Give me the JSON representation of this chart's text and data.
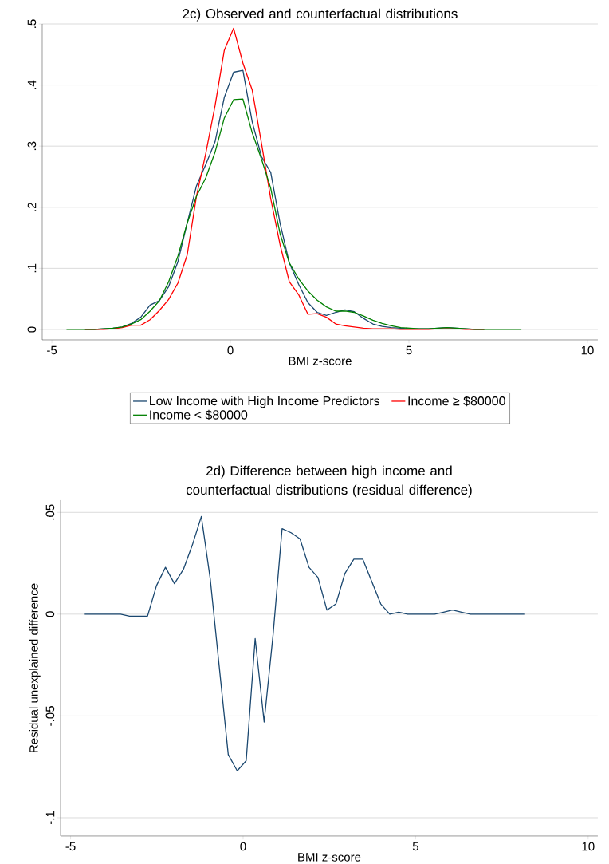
{
  "chart_data": [
    {
      "type": "line",
      "title": "2c) Observed and counterfactual distributions",
      "xlabel": "BMI z-score",
      "x": [
        -4.59,
        -4.33,
        -4.07,
        -3.81,
        -3.55,
        -3.29,
        -3.03,
        -2.77,
        -2.51,
        -2.25,
        -1.99,
        -1.73,
        -1.47,
        -1.21,
        -0.95,
        -0.69,
        -0.43,
        -0.17,
        0.09,
        0.35,
        0.61,
        0.87,
        1.13,
        1.39,
        1.65,
        1.91,
        2.17,
        2.43,
        2.69,
        2.95,
        3.21,
        3.47,
        3.73,
        3.99,
        4.25,
        4.51,
        4.77,
        5.03,
        5.29,
        5.55,
        5.81,
        6.07,
        6.33,
        6.59,
        6.85,
        7.11,
        7.37,
        7.63,
        7.89,
        8.15
      ],
      "series": [
        {
          "name": "Low Income with High Income Predictors",
          "color": "#1a476f",
          "values": [
            null,
            null,
            0,
            0,
            0.001,
            0.002,
            0.004,
            0.01,
            0.02,
            0.04,
            0.047,
            0.07,
            0.111,
            0.174,
            0.235,
            0.27,
            0.307,
            0.38,
            0.421,
            0.424,
            0.34,
            0.283,
            0.257,
            0.174,
            0.109,
            0.074,
            0.044,
            0.028,
            0.023,
            0.028,
            0.032,
            0.029,
            0.018,
            0.009,
            0.005,
            0.003,
            0.002,
            0.001,
            0.001,
            0.001,
            0.002,
            0.003,
            0.002,
            0.001,
            0,
            0,
            null,
            null,
            null,
            null
          ]
        },
        {
          "name": "Income ≥ $80000",
          "color": "#ff0000",
          "values": [
            null,
            null,
            0,
            0,
            0,
            0.001,
            0.003,
            0.007,
            0.007,
            0.016,
            0.031,
            0.049,
            0.076,
            0.122,
            0.218,
            0.288,
            0.366,
            0.457,
            0.493,
            0.436,
            0.392,
            0.305,
            0.214,
            0.139,
            0.078,
            0.057,
            0.025,
            0.026,
            0.02,
            0.009,
            0.006,
            0.004,
            0.002,
            0.001,
            0.001,
            0.001,
            0,
            0,
            0,
            0,
            0.001,
            0.001,
            0.001,
            0,
            0,
            0,
            null,
            null,
            null,
            null
          ]
        },
        {
          "name": "Income < $80000",
          "color": "#008000",
          "values": [
            0,
            0,
            0,
            0,
            0.001,
            0.002,
            0.004,
            0.009,
            0.016,
            0.03,
            0.047,
            0.078,
            0.12,
            0.174,
            0.218,
            0.248,
            0.29,
            0.346,
            0.376,
            0.377,
            0.322,
            0.279,
            0.231,
            0.157,
            0.109,
            0.083,
            0.063,
            0.048,
            0.037,
            0.03,
            0.03,
            0.028,
            0.022,
            0.015,
            0.01,
            0.006,
            0.003,
            0.002,
            0.001,
            0.001,
            0.002,
            0.003,
            0.002,
            0.001,
            0,
            0,
            0,
            0,
            0,
            0
          ]
        }
      ],
      "xlim": [
        -5.27,
        10.29
      ],
      "ylim": [
        -0.017,
        0.5
      ],
      "xticks": [
        -5,
        0,
        5,
        10
      ],
      "yticks": [
        {
          "value": 0,
          "label": "0"
        },
        {
          "value": 0.1,
          "label": ".1"
        },
        {
          "value": 0.2,
          "label": ".2"
        },
        {
          "value": 0.3,
          "label": ".3"
        },
        {
          "value": 0.4,
          "label": ".4"
        },
        {
          "value": 0.5,
          "label": ".5"
        }
      ],
      "grid": "y",
      "legend": "bottom"
    },
    {
      "type": "line",
      "title": "2d) Difference between high income and counterfactual distributions (residual difference)",
      "xlabel": "BMI z-score",
      "ylabel": "Residual unexplained difference",
      "x": [
        -4.59,
        -4.33,
        -4.07,
        -3.81,
        -3.55,
        -3.29,
        -3.03,
        -2.77,
        -2.51,
        -2.25,
        -1.99,
        -1.73,
        -1.47,
        -1.21,
        -0.95,
        -0.69,
        -0.43,
        -0.17,
        0.09,
        0.35,
        0.61,
        0.87,
        1.13,
        1.39,
        1.65,
        1.91,
        2.17,
        2.43,
        2.69,
        2.95,
        3.21,
        3.47,
        3.73,
        3.99,
        4.25,
        4.51,
        4.77,
        5.03,
        5.29,
        5.55,
        5.81,
        6.07,
        6.33,
        6.59,
        6.85,
        7.11,
        7.37,
        7.63,
        7.89,
        8.15
      ],
      "series": [
        {
          "color": "#1a476f",
          "values": [
            0,
            0,
            0,
            0,
            0,
            -0.001,
            -0.001,
            -0.001,
            0.014,
            0.023,
            0.015,
            0.022,
            0.034,
            0.048,
            0.017,
            -0.026,
            -0.069,
            -0.077,
            -0.072,
            -0.012,
            -0.053,
            -0.01,
            0.042,
            0.04,
            0.037,
            0.023,
            0.018,
            0.002,
            0.005,
            0.02,
            0.027,
            0.027,
            0.016,
            0.005,
            0,
            0.001,
            0,
            0,
            0,
            0,
            0.001,
            0.002,
            0.001,
            0,
            0,
            0,
            0,
            0,
            0,
            0
          ]
        }
      ],
      "xlim": [
        -5.29,
        10.28
      ],
      "ylim": [
        -0.109,
        0.056
      ],
      "xticks": [
        -5,
        0,
        5,
        10
      ],
      "yticks": [
        {
          "value": -0.1,
          "label": "-.1"
        },
        {
          "value": -0.05,
          "label": "-.05"
        },
        {
          "value": 0,
          "label": "0"
        },
        {
          "value": 0.05,
          "label": ".05"
        }
      ],
      "grid": "y"
    }
  ]
}
